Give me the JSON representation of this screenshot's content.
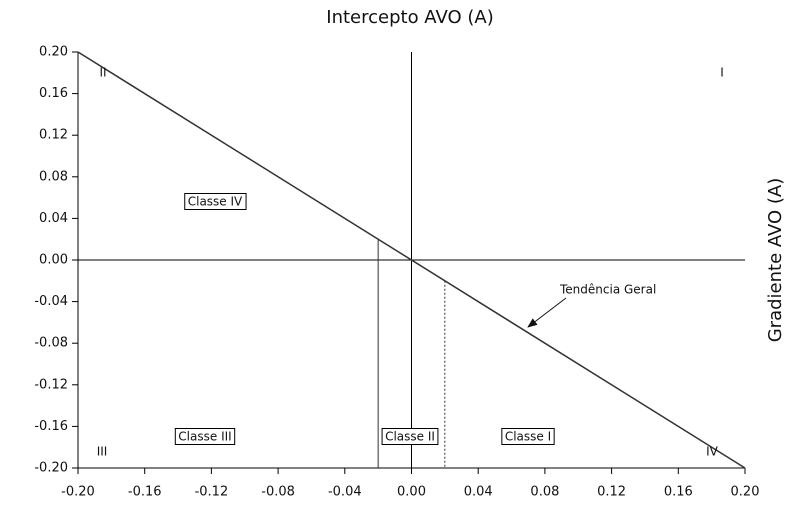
{
  "chart_data": {
    "type": "line",
    "title": "Intercepto AVO (A)",
    "ylabel": "Gradiente AVO (A)",
    "x": [
      -0.2,
      0.2
    ],
    "series": [
      {
        "color": "#333333",
        "values": [
          0.2,
          -0.2
        ]
      }
    ],
    "class_boundaries": [
      -0.02,
      0.02
    ],
    "xlim": [
      -0.2,
      0.2
    ],
    "ylim": [
      -0.2,
      0.2
    ],
    "xticks": [
      {
        "value": -0.2,
        "label": "-0.20"
      },
      {
        "value": -0.16,
        "label": "-0.16"
      },
      {
        "value": -0.12,
        "label": "-0.12"
      },
      {
        "value": -0.08,
        "label": "-0.08"
      },
      {
        "value": -0.04,
        "label": "-0.04"
      },
      {
        "value": 0,
        "label": "0.00"
      },
      {
        "value": 0.04,
        "label": "0.04"
      },
      {
        "value": 0.08,
        "label": "0.08"
      },
      {
        "value": 0.12,
        "label": "0.12"
      },
      {
        "value": 0.16,
        "label": "0.16"
      },
      {
        "value": 0.2,
        "label": "0.20"
      }
    ],
    "yticks": [
      {
        "value": 0.2,
        "label": "0.20"
      },
      {
        "value": 0.16,
        "label": "0.16"
      },
      {
        "value": 0.12,
        "label": "0.12"
      },
      {
        "value": 0.08,
        "label": "0.08"
      },
      {
        "value": 0.04,
        "label": "0.04"
      },
      {
        "value": 0,
        "label": "0.00"
      },
      {
        "value": -0.04,
        "label": "-0.04"
      },
      {
        "value": -0.08,
        "label": "-0.08"
      },
      {
        "value": -0.12,
        "label": "-0.12"
      },
      {
        "value": -0.16,
        "label": "-0.16"
      },
      {
        "value": -0.2,
        "label": "-0.20"
      }
    ],
    "quadrants": [
      "I",
      "II",
      "III",
      "IV"
    ],
    "classes": [
      "Classe IV",
      "Classe III",
      "Classe II",
      "Classe I"
    ],
    "annotation": "Tendência Geral"
  }
}
